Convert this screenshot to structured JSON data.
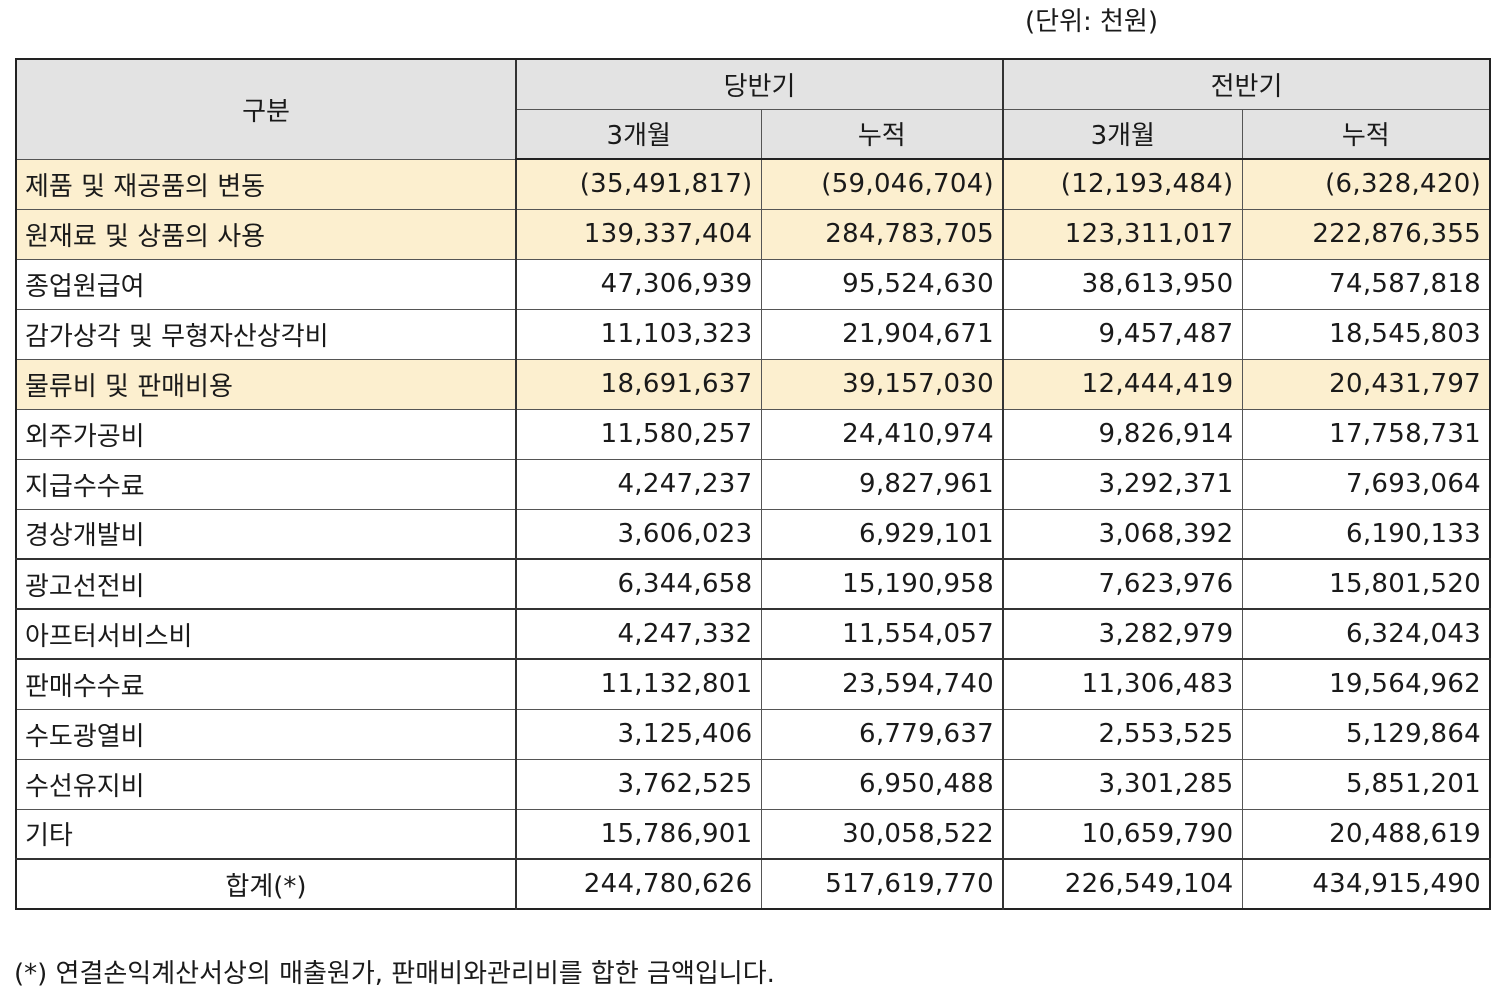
{
  "unit_note": "(단위: 천원)",
  "header": {
    "category": "구분",
    "current_period": "당반기",
    "prior_period": "전반기",
    "three_months": "3개월",
    "cumulative": "누적"
  },
  "rows": [
    {
      "label": "제품 및 재공품의 변동",
      "highlight": true,
      "values": [
        "(35,491,817)",
        "(59,046,704)",
        "(12,193,484)",
        "(6,328,420)"
      ]
    },
    {
      "label": "원재료 및 상품의 사용",
      "highlight": true,
      "values": [
        "139,337,404",
        "284,783,705",
        "123,311,017",
        "222,876,355"
      ]
    },
    {
      "label": "종업원급여",
      "highlight": false,
      "values": [
        "47,306,939",
        "95,524,630",
        "38,613,950",
        "74,587,818"
      ]
    },
    {
      "label": "감가상각 및 무형자산상각비",
      "highlight": false,
      "values": [
        "11,103,323",
        "21,904,671",
        "9,457,487",
        "18,545,803"
      ]
    },
    {
      "label": "물류비 및 판매비용",
      "highlight": true,
      "values": [
        "18,691,637",
        "39,157,030",
        "12,444,419",
        "20,431,797"
      ]
    },
    {
      "label": "외주가공비",
      "highlight": false,
      "values": [
        "11,580,257",
        "24,410,974",
        "9,826,914",
        "17,758,731"
      ]
    },
    {
      "label": "지급수수료",
      "highlight": false,
      "values": [
        "4,247,237",
        "9,827,961",
        "3,292,371",
        "7,693,064"
      ]
    },
    {
      "label": "경상개발비",
      "highlight": false,
      "values": [
        "3,606,023",
        "6,929,101",
        "3,068,392",
        "6,190,133"
      ]
    },
    {
      "label": "광고선전비",
      "highlight": false,
      "values": [
        "6,344,658",
        "15,190,958",
        "7,623,976",
        "15,801,520"
      ]
    },
    {
      "label": "아프터서비스비",
      "highlight": false,
      "values": [
        "4,247,332",
        "11,554,057",
        "3,282,979",
        "6,324,043"
      ]
    },
    {
      "label": "판매수수료",
      "highlight": false,
      "values": [
        "11,132,801",
        "23,594,740",
        "11,306,483",
        "19,564,962"
      ]
    },
    {
      "label": "수도광열비",
      "highlight": false,
      "values": [
        "3,125,406",
        "6,779,637",
        "2,553,525",
        "5,129,864"
      ]
    },
    {
      "label": "수선유지비",
      "highlight": false,
      "values": [
        "3,762,525",
        "6,950,488",
        "3,301,285",
        "5,851,201"
      ]
    },
    {
      "label": "기타",
      "highlight": false,
      "values": [
        "15,786,901",
        "30,058,522",
        "10,659,790",
        "20,488,619"
      ]
    }
  ],
  "total": {
    "label": "합계(*)",
    "values": [
      "244,780,626",
      "517,619,770",
      "226,549,104",
      "434,915,490"
    ]
  },
  "footnote": "(*) 연결손익계산서상의 매출원가, 판매비와관리비를 합한 금액입니다.",
  "colors": {
    "header_bg": "#e3e3e3",
    "highlight_bg": "#fcefcf"
  }
}
